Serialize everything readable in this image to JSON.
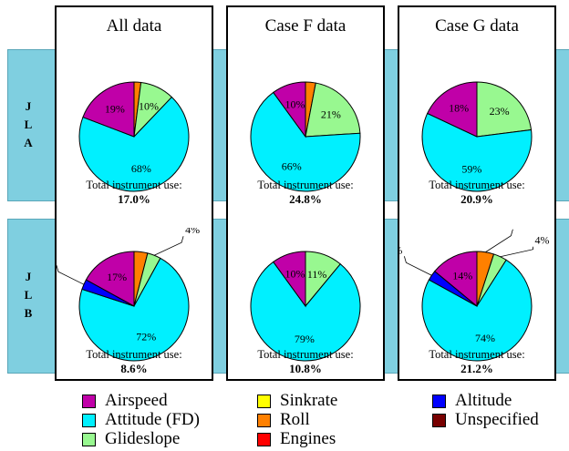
{
  "rows": [
    {
      "label": "J L A"
    },
    {
      "label": "J L B"
    }
  ],
  "panels": [
    {
      "title": "All data"
    },
    {
      "title": "Case F data"
    },
    {
      "title": "Case G data"
    }
  ],
  "caption_label": "Total instrument use:",
  "legend": [
    {
      "name": "Airspeed",
      "color": "#c000a8"
    },
    {
      "name": "Attitude (FD)",
      "color": "#00f0ff"
    },
    {
      "name": "Glideslope",
      "color": "#98f890"
    },
    {
      "name": "Sinkrate",
      "color": "#ffff00"
    },
    {
      "name": "Roll",
      "color": "#ff8000"
    },
    {
      "name": "Engines",
      "color": "#ff0000"
    },
    {
      "name": "Altitude",
      "color": "#0000ff"
    },
    {
      "name": "Unspecified",
      "color": "#780000"
    }
  ],
  "chart_data": [
    {
      "type": "pie",
      "row": "JLA",
      "panel": "All data",
      "total": "17.0%",
      "slices": [
        {
          "category": "Attitude (FD)",
          "value": 68,
          "label": "68%"
        },
        {
          "category": "Airspeed",
          "value": 19,
          "label": "19%"
        },
        {
          "category": "Roll",
          "value": 2,
          "label": ""
        },
        {
          "category": "Glideslope",
          "value": 10,
          "label": "10%"
        }
      ]
    },
    {
      "type": "pie",
      "row": "JLA",
      "panel": "Case F data",
      "total": "24.8%",
      "slices": [
        {
          "category": "Attitude (FD)",
          "value": 66,
          "label": "66%"
        },
        {
          "category": "Airspeed",
          "value": 10,
          "label": "10%"
        },
        {
          "category": "Roll",
          "value": 3,
          "label": ""
        },
        {
          "category": "Glideslope",
          "value": 21,
          "label": "21%"
        }
      ]
    },
    {
      "type": "pie",
      "row": "JLA",
      "panel": "Case G data",
      "total": "20.9%",
      "slices": [
        {
          "category": "Attitude (FD)",
          "value": 59,
          "label": "59%"
        },
        {
          "category": "Airspeed",
          "value": 18,
          "label": "18%"
        },
        {
          "category": "Glideslope",
          "value": 23,
          "label": "23%"
        }
      ]
    },
    {
      "type": "pie",
      "row": "JLB",
      "panel": "All data",
      "total": "8.6%",
      "slices": [
        {
          "category": "Attitude (FD)",
          "value": 72,
          "label": "72%"
        },
        {
          "category": "Airspeed",
          "value": 17,
          "label": "17%"
        },
        {
          "category": "Altitude",
          "value": 3,
          "label": "3%"
        },
        {
          "category": "Roll",
          "value": 4,
          "label": ""
        },
        {
          "category": "Glideslope",
          "value": 4,
          "label": "4%"
        }
      ]
    },
    {
      "type": "pie",
      "row": "JLB",
      "panel": "Case F data",
      "total": "10.8%",
      "slices": [
        {
          "category": "Attitude (FD)",
          "value": 79,
          "label": "79%"
        },
        {
          "category": "Airspeed",
          "value": 10,
          "label": "10%"
        },
        {
          "category": "Glideslope",
          "value": 11,
          "label": "11%"
        }
      ]
    },
    {
      "type": "pie",
      "row": "JLB",
      "panel": "Case G data",
      "total": "21.2%",
      "slices": [
        {
          "category": "Attitude (FD)",
          "value": 74,
          "label": "74%"
        },
        {
          "category": "Airspeed",
          "value": 14,
          "label": "14%"
        },
        {
          "category": "Altitude",
          "value": 3,
          "label": "3%"
        },
        {
          "category": "Roll",
          "value": 5,
          "label": "5%"
        },
        {
          "category": "Glideslope",
          "value": 4,
          "label": "4%"
        }
      ]
    }
  ]
}
